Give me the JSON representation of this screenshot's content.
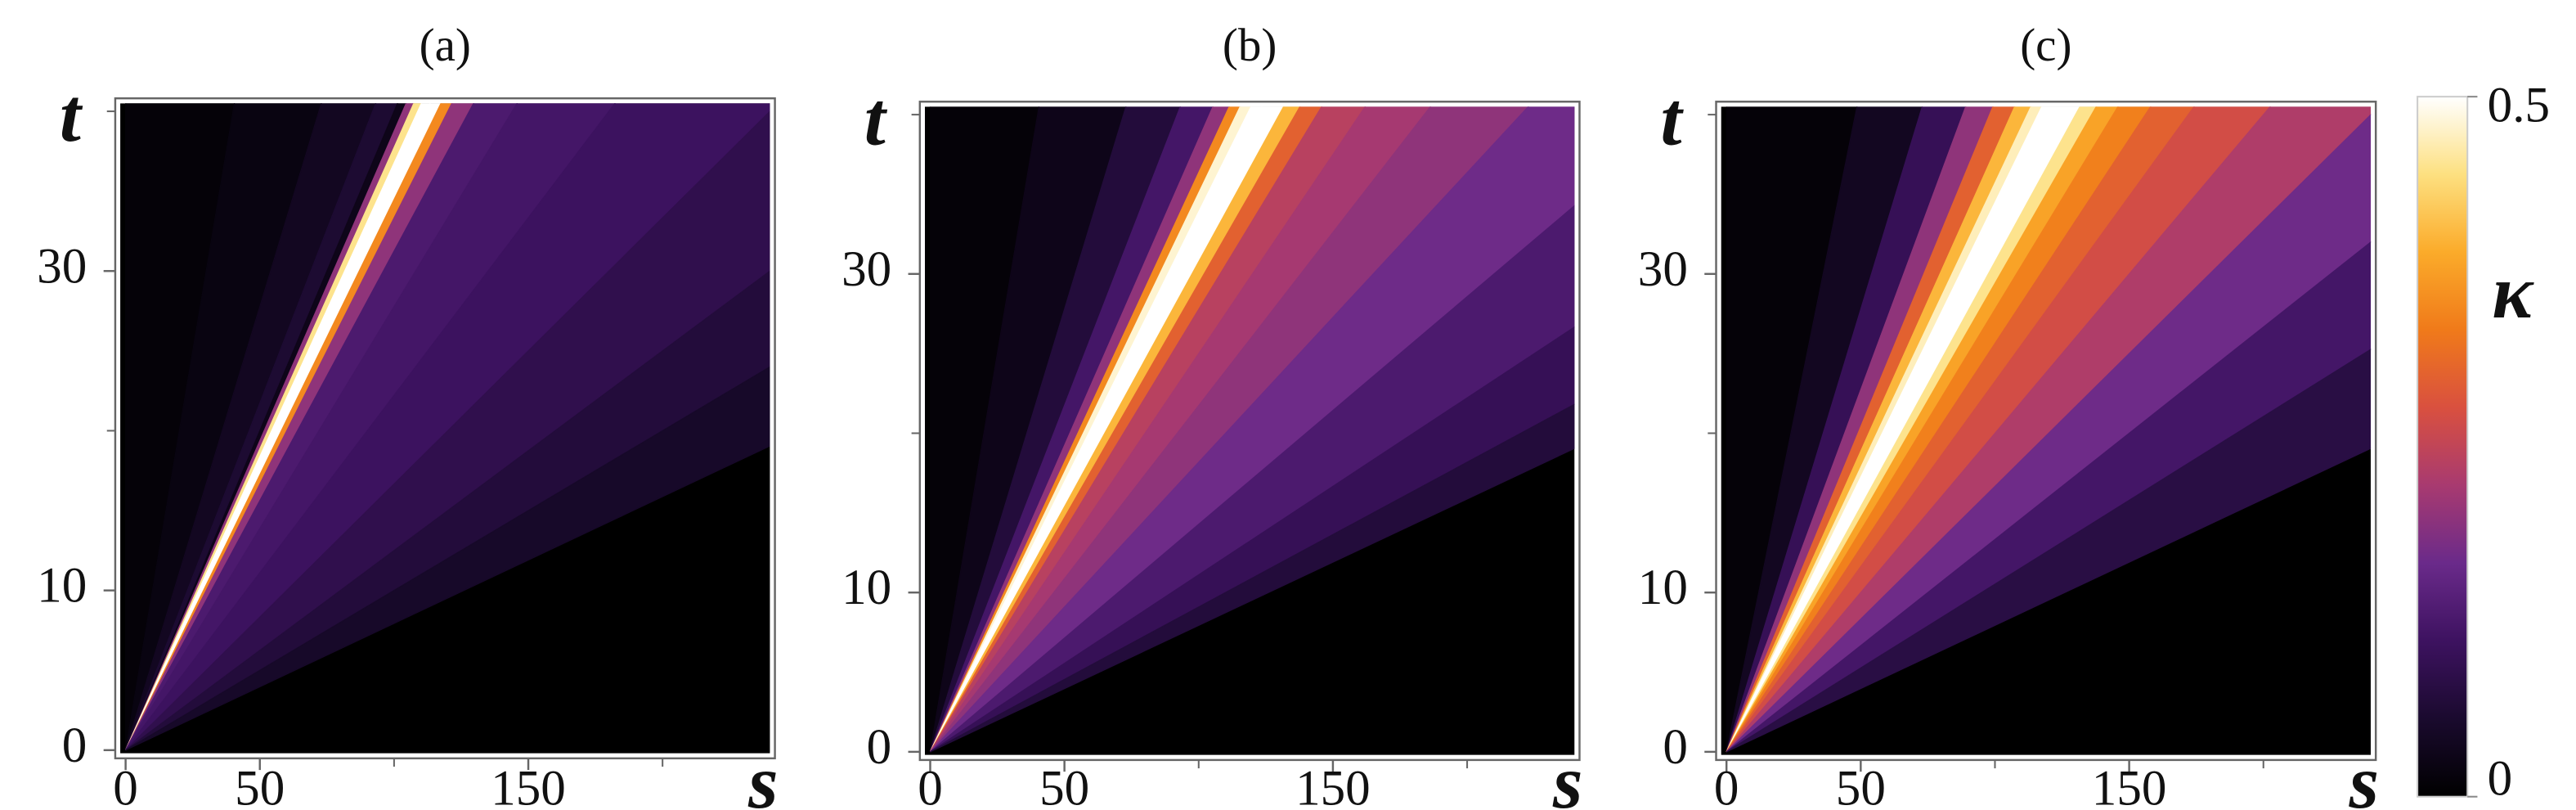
{
  "chart_data": [
    {
      "type": "heatmap",
      "title": "(a)",
      "xlabel": "s",
      "ylabel": "t",
      "xlim": [
        -2,
        240
      ],
      "ylim": [
        -0.2,
        40.5
      ],
      "xticks": [
        0,
        50,
        150
      ],
      "xminor": [
        100,
        200
      ],
      "yticks": [
        0,
        10,
        30
      ],
      "yminor": [
        20,
        40
      ],
      "s_over_t_edges": [
        0,
        1,
        1.8,
        2.3,
        2.5,
        2.58,
        2.65,
        2.72,
        2.8,
        2.9,
        3.0,
        3.2,
        3.6,
        4.5,
        6,
        8,
        10,
        12.6
      ],
      "values": [
        0.01,
        0.02,
        0.04,
        0.06,
        0.03,
        0.2,
        0.45,
        0.5,
        0.5,
        0.35,
        0.2,
        0.13,
        0.12,
        0.11,
        0.09,
        0.07,
        0.05
      ]
    },
    {
      "type": "heatmap",
      "title": "(b)",
      "xlabel": "s",
      "ylabel": "t",
      "xlim": [
        -2,
        240
      ],
      "ylim": [
        -0.2,
        40.5
      ],
      "xticks": [
        0,
        50,
        150
      ],
      "xminor": [
        100,
        200
      ],
      "yticks": [
        0,
        10,
        30
      ],
      "yminor": [
        20,
        40
      ],
      "s_over_t_edges": [
        0,
        1,
        1.8,
        2.3,
        2.6,
        2.75,
        2.85,
        2.95,
        3.05,
        3.25,
        3.4,
        3.6,
        4,
        4.6,
        5.5,
        7,
        9,
        11,
        12.6
      ],
      "values": [
        0.01,
        0.03,
        0.07,
        0.12,
        0.2,
        0.35,
        0.48,
        0.5,
        0.5,
        0.4,
        0.3,
        0.24,
        0.22,
        0.2,
        0.17,
        0.13,
        0.1,
        0.07
      ]
    },
    {
      "type": "heatmap",
      "title": "(c)",
      "xlabel": "s",
      "ylabel": "t",
      "xlim": [
        -2,
        240
      ],
      "ylim": [
        -0.2,
        40.5
      ],
      "xticks": [
        0,
        50,
        150
      ],
      "xminor": [
        100,
        200
      ],
      "yticks": [
        0,
        10,
        30
      ],
      "yminor": [
        20,
        40
      ],
      "s_over_t_edges": [
        0,
        1.2,
        1.8,
        2.2,
        2.45,
        2.65,
        2.8,
        2.9,
        3.25,
        3.4,
        3.6,
        3.9,
        4.3,
        5,
        6,
        7.5,
        9.5,
        12.6
      ],
      "values": [
        0.01,
        0.04,
        0.1,
        0.2,
        0.3,
        0.4,
        0.47,
        0.5,
        0.45,
        0.38,
        0.34,
        0.3,
        0.27,
        0.23,
        0.17,
        0.12,
        0.08
      ]
    },
    {
      "type": "colorbar",
      "label": "κ",
      "clim": [
        0,
        0.5
      ],
      "ticks": [
        0,
        0.5
      ],
      "colors": [
        "#000000",
        "#1a0a2e",
        "#3d1260",
        "#6a2a8a",
        "#a83a70",
        "#d9503f",
        "#f07a1a",
        "#fbab2a",
        "#fde080",
        "#ffffff"
      ]
    }
  ]
}
